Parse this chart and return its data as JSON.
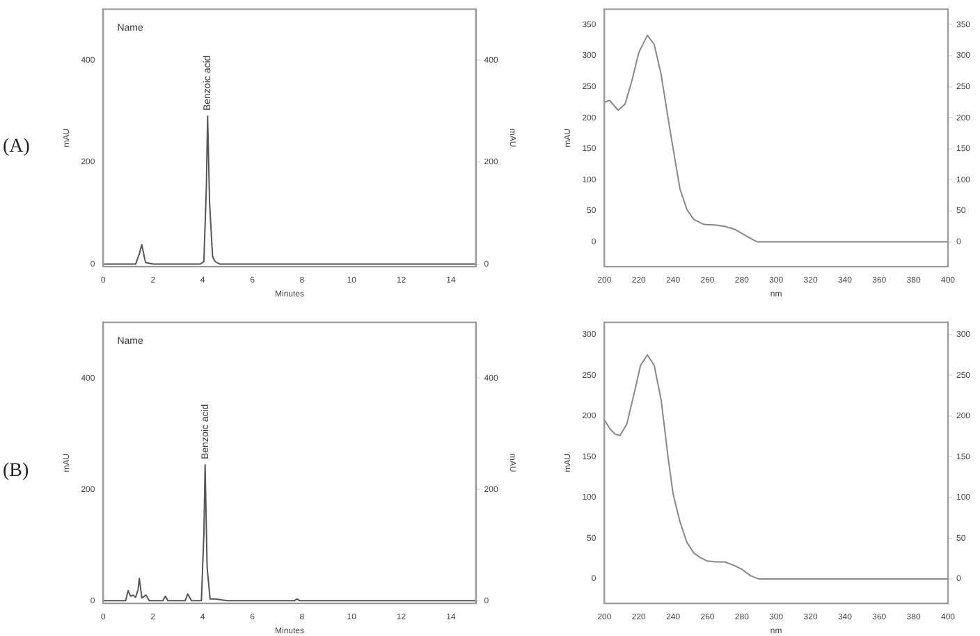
{
  "chart_data": [
    {
      "type": "line",
      "title": "(A)",
      "xlabel": "Minutes",
      "ylabel": "mAU",
      "y2label": "mAU",
      "annotations": [
        "Name",
        {
          "text": "Benzoic acid",
          "x": 4.2,
          "y": 290
        }
      ],
      "x": [
        0,
        1.3,
        1.45,
        1.55,
        1.7,
        2,
        3.9,
        4.05,
        4.15,
        4.2,
        4.28,
        4.4,
        4.5,
        4.7,
        6,
        10,
        15
      ],
      "series": [
        {
          "color": "#555555",
          "values": [
            0,
            0,
            20,
            38,
            3,
            0,
            0,
            5,
            150,
            290,
            120,
            15,
            5,
            0,
            0,
            0,
            0
          ]
        }
      ],
      "xlim": [
        0,
        15
      ],
      "xticks": [
        0,
        2,
        4,
        6,
        8,
        10,
        12,
        14
      ],
      "ylim": [
        -5,
        500
      ],
      "yticks": [
        0,
        200,
        400
      ],
      "y2lim": [
        -5,
        500
      ],
      "y2ticks": [
        0,
        200,
        400
      ],
      "grid": false,
      "legend": false
    },
    {
      "type": "line",
      "xlabel": "nm",
      "ylabel": "mAU",
      "x": [
        200,
        203,
        208,
        212,
        216,
        220,
        225,
        229,
        233,
        237,
        240,
        244,
        248,
        252,
        258,
        265,
        270,
        276,
        281,
        286,
        289,
        300,
        340,
        400
      ],
      "series": [
        {
          "color": "#888888",
          "values": [
            225,
            228,
            212,
            222,
            260,
            305,
            333,
            318,
            270,
            200,
            150,
            85,
            52,
            36,
            28,
            27,
            25,
            20,
            12,
            4,
            0,
            0,
            0,
            0
          ]
        }
      ],
      "xlim": [
        200,
        400
      ],
      "xticks": [
        200,
        220,
        240,
        260,
        280,
        300,
        320,
        340,
        360,
        380,
        400
      ],
      "ylim": [
        -40,
        375
      ],
      "yticks": [
        0,
        50,
        100,
        150,
        200,
        250,
        300,
        350
      ],
      "y2lim": [
        -40,
        375
      ],
      "y2ticks": [
        0,
        50,
        100,
        150,
        200,
        250,
        300,
        350
      ],
      "grid": false,
      "legend": false
    },
    {
      "type": "line",
      "title": "(B)",
      "xlabel": "Minutes",
      "ylabel": "mAU",
      "y2label": "mAU",
      "annotations": [
        "Name",
        {
          "text": "Benzoic acid",
          "x": 4.1,
          "y": 244
        }
      ],
      "x": [
        0,
        0.9,
        1.0,
        1.1,
        1.2,
        1.3,
        1.4,
        1.45,
        1.55,
        1.65,
        1.72,
        1.85,
        2.4,
        2.5,
        2.6,
        3.3,
        3.4,
        3.55,
        3.95,
        4.05,
        4.1,
        4.18,
        4.3,
        4.5,
        5,
        7.7,
        7.8,
        7.9,
        9,
        15
      ],
      "series": [
        {
          "color": "#555555",
          "values": [
            0,
            0,
            18,
            8,
            10,
            6,
            20,
            40,
            5,
            8,
            10,
            0,
            0,
            8,
            0,
            0,
            12,
            0,
            0,
            120,
            244,
            60,
            3,
            3,
            0,
            0,
            3,
            0,
            0,
            0
          ]
        }
      ],
      "xlim": [
        0,
        15
      ],
      "xticks": [
        0,
        2,
        4,
        6,
        8,
        10,
        12,
        14
      ],
      "ylim": [
        -5,
        500
      ],
      "yticks": [
        0,
        200,
        400
      ],
      "y2lim": [
        -5,
        500
      ],
      "y2ticks": [
        0,
        200,
        400
      ],
      "grid": false,
      "legend": false
    },
    {
      "type": "line",
      "xlabel": "nm",
      "ylabel": "mAU",
      "x": [
        200,
        203,
        206,
        209,
        213,
        217,
        221,
        225,
        229,
        233,
        237,
        240,
        244,
        248,
        252,
        256,
        260,
        265,
        270,
        275,
        280,
        285,
        290,
        300,
        340,
        400
      ],
      "series": [
        {
          "color": "#888888",
          "values": [
            195,
            185,
            178,
            176,
            190,
            225,
            262,
            275,
            262,
            220,
            150,
            104,
            70,
            45,
            32,
            26,
            22,
            21,
            21,
            17,
            12,
            4,
            0,
            0,
            0,
            0
          ]
        }
      ],
      "xlim": [
        200,
        400
      ],
      "xticks": [
        200,
        220,
        240,
        260,
        280,
        300,
        320,
        340,
        360,
        380,
        400
      ],
      "ylim": [
        -30,
        315
      ],
      "yticks": [
        0,
        50,
        100,
        150,
        200,
        250,
        300
      ],
      "y2lim": [
        -30,
        315
      ],
      "y2ticks": [
        0,
        50,
        100,
        150,
        200,
        250,
        300
      ],
      "grid": false,
      "legend": false
    }
  ]
}
